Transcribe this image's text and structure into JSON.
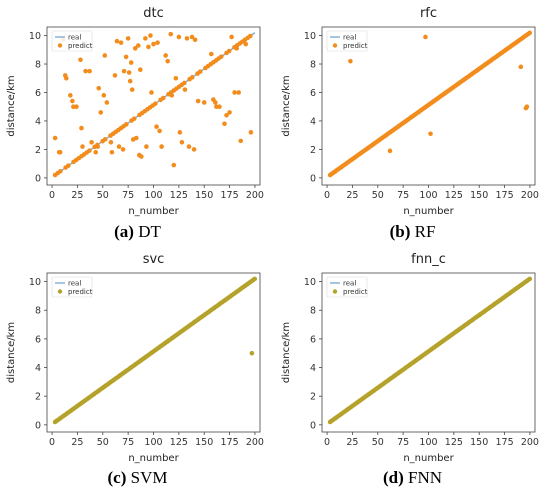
{
  "colors": {
    "real": "#7aa6cf",
    "orange": "#f28c1c",
    "olive": "#b5a22a"
  },
  "chart_data": [
    {
      "type": "scatter",
      "title": "dtc",
      "caption_letter": "(a)",
      "caption_text": " DT",
      "xlabel": "n_number",
      "ylabel": "distance/km",
      "xlim": [
        -5,
        205
      ],
      "ylim": [
        -0.5,
        10.6
      ],
      "xticks": [
        0,
        25,
        50,
        75,
        100,
        125,
        150,
        175,
        200
      ],
      "yticks": [
        0,
        2,
        4,
        6,
        8,
        10
      ],
      "legend": [
        "real",
        "predict"
      ],
      "legend_position": "top-left",
      "marker_color": "orange",
      "real_line": {
        "x": [
          3,
          200
        ],
        "y": [
          0.2,
          10.2
        ]
      },
      "predict_mode": "scattered",
      "outliers": [
        [
          3,
          2.8
        ],
        [
          7,
          1.8
        ],
        [
          8,
          1.8
        ],
        [
          11,
          9.7
        ],
        [
          13,
          7.2
        ],
        [
          14,
          7.0
        ],
        [
          18,
          5.8
        ],
        [
          20,
          5.4
        ],
        [
          21,
          5.0
        ],
        [
          24,
          5.0
        ],
        [
          28,
          8.3
        ],
        [
          29,
          3.5
        ],
        [
          30,
          2.2
        ],
        [
          33,
          7.5
        ],
        [
          37,
          7.5
        ],
        [
          39,
          2.5
        ],
        [
          43,
          1.8
        ],
        [
          45,
          2.2
        ],
        [
          46,
          6.3
        ],
        [
          48,
          4.6
        ],
        [
          51,
          5.8
        ],
        [
          52,
          8.6
        ],
        [
          54,
          5.3
        ],
        [
          58,
          2.5
        ],
        [
          59,
          1.8
        ],
        [
          62,
          7.2
        ],
        [
          64,
          9.6
        ],
        [
          66,
          2.2
        ],
        [
          68,
          9.5
        ],
        [
          70,
          2.0
        ],
        [
          71,
          7.5
        ],
        [
          73,
          8.5
        ],
        [
          75,
          9.8
        ],
        [
          76,
          7.4
        ],
        [
          77,
          6.8
        ],
        [
          78,
          8.1
        ],
        [
          79,
          6.2
        ],
        [
          80,
          2.7
        ],
        [
          82,
          9.1
        ],
        [
          83,
          2.8
        ],
        [
          85,
          9.3
        ],
        [
          86,
          1.6
        ],
        [
          87,
          7.6
        ],
        [
          88,
          1.5
        ],
        [
          92,
          9.8
        ],
        [
          93,
          2.2
        ],
        [
          95,
          9.2
        ],
        [
          97,
          10.0
        ],
        [
          98,
          6.0
        ],
        [
          100,
          9.4
        ],
        [
          103,
          3.6
        ],
        [
          104,
          9.5
        ],
        [
          106,
          3.3
        ],
        [
          108,
          2.2
        ],
        [
          112,
          8.6
        ],
        [
          114,
          8.2
        ],
        [
          117,
          10.1
        ],
        [
          118,
          5.8
        ],
        [
          120,
          0.9
        ],
        [
          122,
          7.0
        ],
        [
          125,
          9.9
        ],
        [
          126,
          3.2
        ],
        [
          128,
          2.5
        ],
        [
          131,
          6.2
        ],
        [
          133,
          9.8
        ],
        [
          135,
          2.2
        ],
        [
          138,
          9.9
        ],
        [
          140,
          2.0
        ],
        [
          141,
          9.7
        ],
        [
          144,
          5.4
        ],
        [
          150,
          5.3
        ],
        [
          157,
          8.7
        ],
        [
          159,
          5.5
        ],
        [
          161,
          5.3
        ],
        [
          162,
          5.0
        ],
        [
          165,
          5.0
        ],
        [
          170,
          3.8
        ],
        [
          172,
          4.4
        ],
        [
          175,
          4.6
        ],
        [
          177,
          9.9
        ],
        [
          180,
          6.0
        ],
        [
          182,
          9.1
        ],
        [
          184,
          6.0
        ],
        [
          186,
          2.6
        ],
        [
          191,
          9.4
        ],
        [
          196,
          3.2
        ]
      ]
    },
    {
      "type": "scatter",
      "title": "rfc",
      "caption_letter": "(b)",
      "caption_text": " RF",
      "xlabel": "n_number",
      "ylabel": "distance/km",
      "xlim": [
        -5,
        205
      ],
      "ylim": [
        -0.5,
        10.6
      ],
      "xticks": [
        0,
        25,
        50,
        75,
        100,
        125,
        150,
        175,
        200
      ],
      "yticks": [
        0,
        2,
        4,
        6,
        8,
        10
      ],
      "legend": [
        "real",
        "predict"
      ],
      "legend_position": "top-left",
      "marker_color": "orange",
      "real_line": {
        "x": [
          3,
          200
        ],
        "y": [
          0.2,
          10.2
        ]
      },
      "predict_mode": "on_line",
      "outliers": [
        [
          23,
          8.2
        ],
        [
          62,
          1.9
        ],
        [
          97,
          9.9
        ],
        [
          102,
          3.1
        ],
        [
          191,
          7.8
        ],
        [
          196,
          4.9
        ],
        [
          197,
          5.0
        ]
      ]
    },
    {
      "type": "scatter",
      "title": "svc",
      "caption_letter": "(c)",
      "caption_text": " SVM",
      "xlabel": "n_number",
      "ylabel": "distance/km",
      "xlim": [
        -5,
        205
      ],
      "ylim": [
        -0.5,
        10.6
      ],
      "xticks": [
        0,
        25,
        50,
        75,
        100,
        125,
        150,
        175,
        200
      ],
      "yticks": [
        0,
        2,
        4,
        6,
        8,
        10
      ],
      "legend": [
        "real",
        "predict"
      ],
      "legend_position": "top-left",
      "marker_color": "olive",
      "real_line": {
        "x": [
          3,
          200
        ],
        "y": [
          0.2,
          10.2
        ]
      },
      "predict_mode": "on_line",
      "outliers": [
        [
          197,
          5.0
        ]
      ]
    },
    {
      "type": "scatter",
      "title": "fnn_c",
      "caption_letter": "(d)",
      "caption_text": " FNN",
      "xlabel": "n_number",
      "ylabel": "distance/km",
      "xlim": [
        -5,
        205
      ],
      "ylim": [
        -0.5,
        10.6
      ],
      "xticks": [
        0,
        25,
        50,
        75,
        100,
        125,
        150,
        175,
        200
      ],
      "yticks": [
        0,
        2,
        4,
        6,
        8,
        10
      ],
      "legend": [
        "real",
        "predict"
      ],
      "legend_position": "top-left",
      "marker_color": "olive",
      "real_line": {
        "x": [
          3,
          200
        ],
        "y": [
          0.2,
          10.2
        ]
      },
      "predict_mode": "on_line",
      "outliers": []
    }
  ]
}
